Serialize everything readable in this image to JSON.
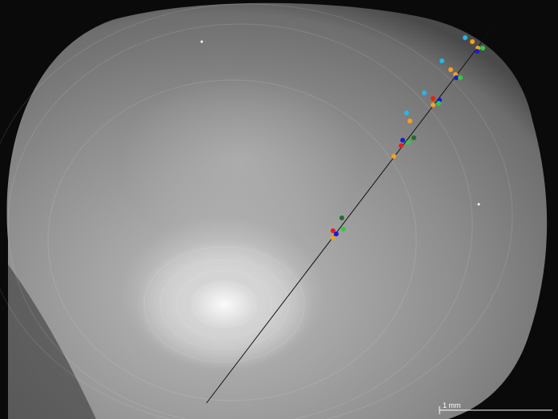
{
  "image": {
    "scale_bar": {
      "label": "1 mm"
    }
  }
}
